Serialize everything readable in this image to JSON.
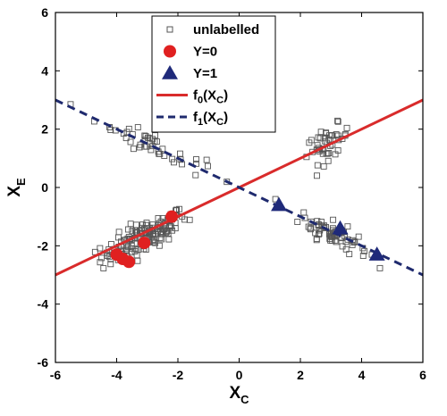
{
  "chart_data": {
    "type": "scatter",
    "xlabel": {
      "main": "X",
      "sub": "C"
    },
    "ylabel": {
      "main": "X",
      "sub": "E"
    },
    "xlim": [
      -6,
      6
    ],
    "ylim": [
      -6,
      6
    ],
    "xticks": [
      "-6",
      "-4",
      "-2",
      "0",
      "2",
      "4",
      "6"
    ],
    "yticks": [
      "-6",
      "-4",
      "-2",
      "0",
      "2",
      "4",
      "6"
    ],
    "grid": false,
    "legend_position": "top-center",
    "colors": {
      "unlabelled": "#555555",
      "y0": "#e02020",
      "y1": "#1f2a7a",
      "f0": "#d92b2b",
      "f1": "#1f2a6e"
    },
    "series": [
      {
        "name": "unlabelled",
        "marker": "square-open",
        "clusters": [
          {
            "center": [
              -3.1,
              -1.7
            ],
            "count": 140,
            "spread": [
              0.7,
              0.45
            ],
            "along_slope": 0.5
          },
          {
            "center": [
              3.1,
              -1.6
            ],
            "count": 70,
            "spread": [
              0.55,
              0.35
            ],
            "along_slope": -0.5
          },
          {
            "center": [
              -2.9,
              1.5
            ],
            "count": 45,
            "spread": [
              0.9,
              0.35
            ],
            "along_slope": -0.5
          },
          {
            "center": [
              2.9,
              1.5
            ],
            "count": 45,
            "spread": [
              0.35,
              0.45
            ],
            "along_slope": 0.5
          }
        ]
      },
      {
        "name": "Y=0",
        "marker": "circle-filled",
        "points": [
          [
            -4.0,
            -2.3
          ],
          [
            -3.8,
            -2.45
          ],
          [
            -3.6,
            -2.55
          ],
          [
            -3.1,
            -1.9
          ],
          [
            -2.2,
            -1.0
          ]
        ]
      },
      {
        "name": "Y=1",
        "marker": "triangle-filled",
        "points": [
          [
            1.3,
            -0.6
          ],
          [
            3.3,
            -1.4
          ],
          [
            4.5,
            -2.3
          ]
        ]
      },
      {
        "name": "f0(XC)",
        "style": "solid",
        "line": [
          [
            -6,
            -3
          ],
          [
            6,
            3
          ]
        ]
      },
      {
        "name": "f1(XC)",
        "style": "dashed",
        "line": [
          [
            -6,
            3
          ],
          [
            6,
            -3
          ]
        ]
      }
    ],
    "legend": [
      {
        "key": "unlabelled",
        "label": "unlabelled"
      },
      {
        "key": "y0",
        "label": "Y=0"
      },
      {
        "key": "y1",
        "label": "Y=1"
      },
      {
        "key": "f0",
        "label": "f",
        "sub": "0",
        "rest": "(X",
        "rest_sub": "C",
        "close": ")"
      },
      {
        "key": "f1",
        "label": "f",
        "sub": "1",
        "rest": "(X",
        "rest_sub": "C",
        "close": ")"
      }
    ]
  }
}
